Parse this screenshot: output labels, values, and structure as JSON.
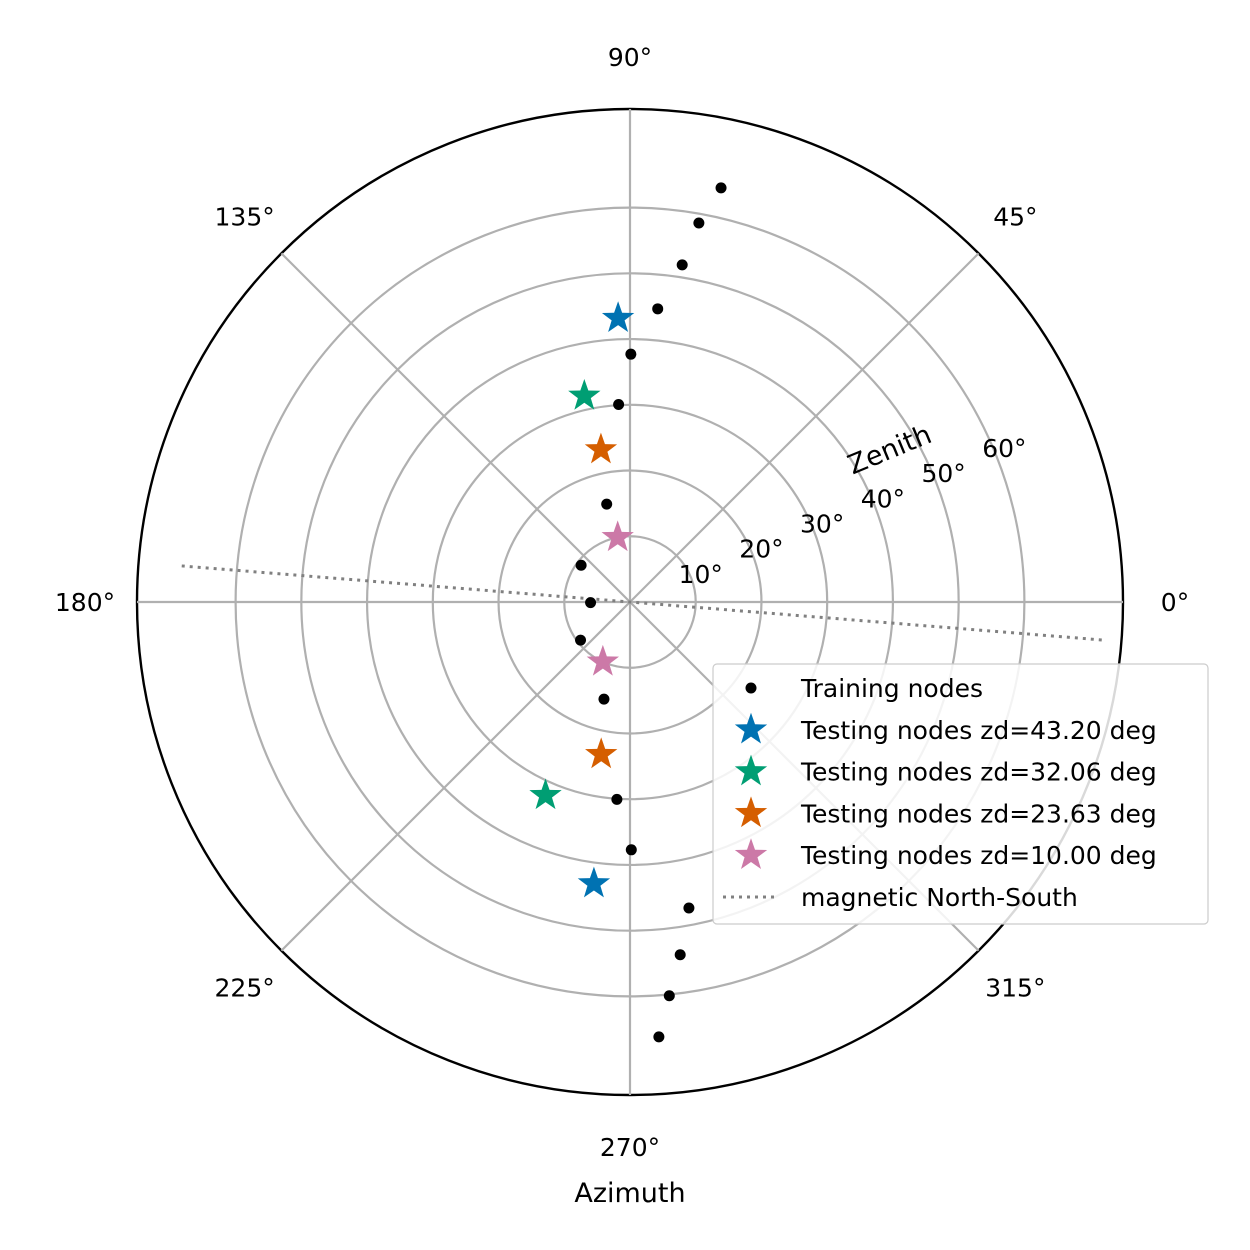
{
  "chart_data": {
    "type": "scatter",
    "projection": "polar",
    "xlabel": "Azimuth",
    "rlabel": "Zenith",
    "rlim": [
      0,
      75
    ],
    "grid": true,
    "legend_position": "lower-right",
    "angular_ticks": [
      {
        "deg": 0,
        "label": "0°"
      },
      {
        "deg": 45,
        "label": "45°"
      },
      {
        "deg": 90,
        "label": "90°"
      },
      {
        "deg": 135,
        "label": "135°"
      },
      {
        "deg": 180,
        "label": "180°"
      },
      {
        "deg": 225,
        "label": "225°"
      },
      {
        "deg": 270,
        "label": "270°"
      },
      {
        "deg": 315,
        "label": "315°"
      }
    ],
    "radial_ticks": [
      {
        "r": 10,
        "label": "10°"
      },
      {
        "r": 20,
        "label": "20°"
      },
      {
        "r": 30,
        "label": "30°"
      },
      {
        "r": 40,
        "label": "40°"
      },
      {
        "r": 50,
        "label": "50°"
      },
      {
        "r": 60,
        "label": "60°"
      }
    ],
    "series": [
      {
        "name": "Training nodes",
        "marker": "dot",
        "color": "#000000",
        "points": [
          {
            "az": 273.8,
            "zd": 66.3
          },
          {
            "az": 275.7,
            "zd": 60.2
          },
          {
            "az": 278.1,
            "zd": 54.2
          },
          {
            "az": 280.9,
            "zd": 47.4
          },
          {
            "az": 270.3,
            "zd": 37.7
          },
          {
            "az": 266.2,
            "zd": 30.1
          },
          {
            "az": 255.0,
            "zd": 15.3
          },
          {
            "az": 217.6,
            "zd": 9.5
          },
          {
            "az": 180.9,
            "zd": 6.0
          },
          {
            "az": 143.1,
            "zd": 9.3
          },
          {
            "az": 103.4,
            "zd": 15.3
          },
          {
            "az": 93.3,
            "zd": 30.1
          },
          {
            "az": 89.8,
            "zd": 37.7
          },
          {
            "az": 84.6,
            "zd": 44.8
          },
          {
            "az": 81.2,
            "zd": 51.9
          },
          {
            "az": 79.7,
            "zd": 58.6
          },
          {
            "az": 77.6,
            "zd": 64.5
          }
        ]
      },
      {
        "name": "Testing nodes zd=43.20 deg",
        "marker": "star",
        "color": "#0072B2",
        "points": [
          {
            "az": 262.7,
            "zd": 43.2
          },
          {
            "az": 92.4,
            "zd": 43.2
          }
        ]
      },
      {
        "name": "Testing nodes zd=32.06 deg",
        "marker": "star",
        "color": "#009E73",
        "points": [
          {
            "az": 246.4,
            "zd": 32.1
          },
          {
            "az": 102.5,
            "zd": 32.1
          }
        ]
      },
      {
        "name": "Testing nodes zd=23.63 deg",
        "marker": "star",
        "color": "#D55E00",
        "points": [
          {
            "az": 259.3,
            "zd": 23.6
          },
          {
            "az": 100.8,
            "zd": 23.6
          }
        ]
      },
      {
        "name": "Testing nodes zd=10.00 deg",
        "marker": "star",
        "color": "#CC79A7",
        "points": [
          {
            "az": 245.6,
            "zd": 10.0
          },
          {
            "az": 100.8,
            "zd": 10.0
          }
        ]
      },
      {
        "name": "magnetic North-South",
        "marker": "dotted-line",
        "color": "#808080",
        "points": [
          {
            "az": -4.6,
            "zd": 72.0
          },
          {
            "az": 175.4,
            "zd": 69.0
          }
        ]
      }
    ]
  }
}
